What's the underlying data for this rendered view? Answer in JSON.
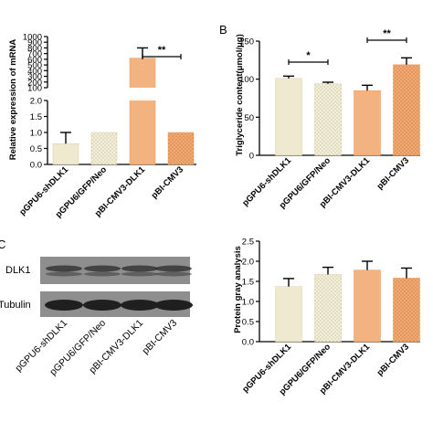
{
  "panels": {
    "b": "B",
    "c": "C"
  },
  "colors": {
    "cream": "#efe9cf",
    "light_dots": "#f3efdc",
    "orange": "#f3b380",
    "orange_dots": "#f1a66c",
    "blot_bg": "#8d8d8d",
    "band": "#1f1f1f"
  },
  "blot": {
    "row_labels": [
      "DLK1",
      "Tubulin"
    ],
    "lanes": [
      "pGPU6-shDLK1",
      "pGPU6/GFP/Neo",
      "pBI-CMV3-DLK1",
      "pBI-CMV3"
    ]
  },
  "chart_data": [
    {
      "id": "A",
      "type": "bar",
      "categories": [
        "pGPU6-shDLK1",
        "pGPU6/GFP/Neo",
        "pBI-CMV3-DLK1",
        "pBI-CMV3"
      ],
      "values": [
        0.65,
        1.0,
        620,
        1.0
      ],
      "errors": [
        0.35,
        0.0,
        180,
        0.0
      ],
      "ylabel": "Relative expression of mRNA",
      "ylim": [
        0,
        1000
      ],
      "broken_axis": true,
      "lower_ticks": [
        "0.0",
        "0.5",
        "1.0",
        "1.5",
        "2.0"
      ],
      "upper_ticks": [
        "100",
        "200",
        "300",
        "400",
        "500",
        "600",
        "700",
        "800",
        "900",
        "1000"
      ],
      "significance": [
        {
          "between": [
            2,
            3
          ],
          "label": "**"
        }
      ]
    },
    {
      "id": "B",
      "type": "bar",
      "categories": [
        "pGPU6-shDLK1",
        "pGPU6/GFP/Neo",
        "pBI-CMV3-DLK1",
        "pBI-CMV3"
      ],
      "values": [
        101,
        94,
        85,
        119
      ],
      "errors": [
        3,
        2,
        7,
        9
      ],
      "ylabel": "Triglyceride content(μmol/μg)",
      "ylim": [
        0,
        150
      ],
      "yticks": [
        0,
        50,
        100,
        150
      ],
      "significance": [
        {
          "between": [
            0,
            1
          ],
          "label": "*"
        },
        {
          "between": [
            2,
            3
          ],
          "label": "**"
        }
      ]
    },
    {
      "id": "C-right",
      "type": "bar",
      "categories": [
        "pGPU6-shDLK1",
        "pGPU6/GFP/Neo",
        "pBI-CMV3-DLK1",
        "pBI-CMV3"
      ],
      "values": [
        1.37,
        1.67,
        1.78,
        1.58
      ],
      "errors": [
        0.2,
        0.18,
        0.22,
        0.25
      ],
      "ylabel": "Protein gray analysis",
      "ylim": [
        0,
        2.5
      ],
      "yticks": [
        0.0,
        0.5,
        1.0,
        1.5,
        2.0,
        2.5
      ]
    }
  ]
}
